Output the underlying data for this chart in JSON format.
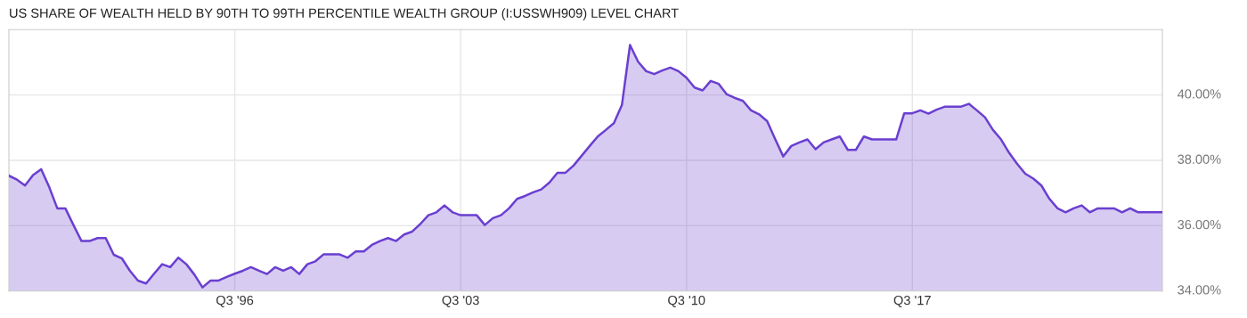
{
  "chart_data": {
    "type": "area",
    "title": "US SHARE OF WEALTH HELD BY 90TH TO 99TH PERCENTILE WEALTH GROUP (I:USSWH909) LEVEL CHART",
    "categories": [
      null,
      null,
      null,
      null,
      null,
      null,
      null,
      null,
      null,
      null,
      null,
      null,
      null,
      null,
      null,
      null,
      null,
      null,
      null,
      null,
      null,
      null,
      null,
      null,
      null,
      null,
      null,
      null,
      "Q3 '96",
      null,
      null,
      null,
      null,
      null,
      null,
      null,
      null,
      null,
      null,
      null,
      null,
      null,
      null,
      null,
      null,
      null,
      null,
      null,
      null,
      null,
      null,
      null,
      null,
      null,
      null,
      null,
      "Q3 '03",
      null,
      null,
      null,
      null,
      null,
      null,
      null,
      null,
      null,
      null,
      null,
      null,
      null,
      null,
      null,
      null,
      null,
      null,
      null,
      null,
      null,
      null,
      null,
      null,
      null,
      null,
      null,
      "Q3 '10",
      null,
      null,
      null,
      null,
      null,
      null,
      null,
      null,
      null,
      null,
      null,
      null,
      null,
      null,
      null,
      null,
      null,
      null,
      null,
      null,
      null,
      null,
      null,
      null,
      null,
      null,
      null,
      "Q3 '17",
      null,
      null,
      null,
      null,
      null,
      null,
      null,
      null,
      null,
      null,
      null,
      null,
      null,
      null,
      null,
      null,
      null,
      null,
      null,
      null,
      null,
      null,
      null,
      null,
      null,
      null,
      null,
      null,
      null,
      null,
      null
    ],
    "series": [
      {
        "color": "#6a3fd0",
        "values": [
          37.53,
          37.41,
          37.23,
          37.55,
          37.73,
          37.18,
          36.53,
          36.53,
          36.02,
          35.53,
          35.53,
          35.62,
          35.62,
          35.11,
          35.0,
          34.62,
          34.32,
          34.23,
          34.53,
          34.82,
          34.73,
          35.02,
          34.82,
          34.5,
          34.11,
          34.32,
          34.32,
          34.43,
          34.53,
          34.62,
          34.73,
          34.62,
          34.52,
          34.73,
          34.62,
          34.73,
          34.52,
          34.82,
          34.91,
          35.12,
          35.12,
          35.12,
          35.02,
          35.21,
          35.21,
          35.41,
          35.53,
          35.62,
          35.53,
          35.73,
          35.82,
          36.05,
          36.32,
          36.41,
          36.62,
          36.41,
          36.32,
          36.32,
          36.32,
          36.02,
          36.23,
          36.32,
          36.53,
          36.82,
          36.91,
          37.02,
          37.11,
          37.32,
          37.62,
          37.62,
          37.84,
          38.14,
          38.44,
          38.73,
          38.93,
          39.14,
          39.7,
          41.53,
          41.02,
          40.73,
          40.64,
          40.75,
          40.84,
          40.73,
          40.53,
          40.23,
          40.14,
          40.43,
          40.34,
          40.02,
          39.91,
          39.82,
          39.53,
          39.41,
          39.2,
          38.65,
          38.12,
          38.44,
          38.55,
          38.64,
          38.34,
          38.55,
          38.64,
          38.73,
          38.32,
          38.32,
          38.73,
          38.64,
          38.64,
          38.64,
          38.64,
          39.44,
          39.44,
          39.53,
          39.43,
          39.55,
          39.64,
          39.64,
          39.64,
          39.73,
          39.53,
          39.32,
          38.93,
          38.64,
          38.23,
          37.89,
          37.59,
          37.44,
          37.23,
          36.82,
          36.53,
          36.41,
          36.53,
          36.62,
          36.41,
          36.53,
          36.53,
          36.53,
          36.41,
          36.53,
          36.41,
          36.41,
          36.41,
          36.41
        ]
      }
    ],
    "ylim": [
      34,
      42
    ],
    "yticks": [
      {
        "value": 34,
        "label": "34.00%"
      },
      {
        "value": 36,
        "label": "36.00%"
      },
      {
        "value": 38,
        "label": "38.00%"
      },
      {
        "value": 40,
        "label": "40.00%"
      }
    ],
    "grid": true,
    "legend": false
  }
}
